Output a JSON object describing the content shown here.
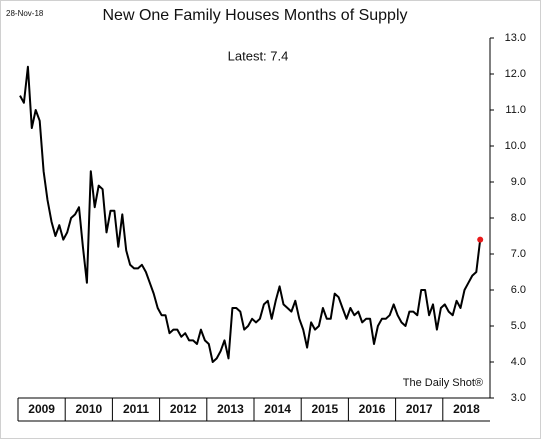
{
  "chart_data": {
    "type": "line",
    "title": "New One Family Houses Months of Supply",
    "date": "28-Nov-18",
    "annotation": "Latest:  7.4",
    "source": "The Daily Shot®",
    "categories": [
      null,
      null,
      null,
      null,
      null,
      null,
      "2009",
      null,
      null,
      null,
      null,
      null,
      null,
      null,
      null,
      null,
      null,
      null,
      "2010",
      null,
      null,
      null,
      null,
      null,
      null,
      null,
      null,
      null,
      null,
      null,
      "2011",
      null,
      null,
      null,
      null,
      null,
      null,
      null,
      null,
      null,
      null,
      null,
      "2012",
      null,
      null,
      null,
      null,
      null,
      null,
      null,
      null,
      null,
      null,
      null,
      "2013",
      null,
      null,
      null,
      null,
      null,
      null,
      null,
      null,
      null,
      null,
      null,
      "2014",
      null,
      null,
      null,
      null,
      null,
      null,
      null,
      null,
      null,
      null,
      null,
      "2015",
      null,
      null,
      null,
      null,
      null,
      null,
      null,
      null,
      null,
      null,
      null,
      "2016",
      null,
      null,
      null,
      null,
      null,
      null,
      null,
      null,
      null,
      null,
      null,
      "2017",
      null,
      null,
      null,
      null,
      null,
      null,
      null,
      null,
      null,
      null,
      null,
      "2018",
      null,
      null,
      null
    ],
    "series": [
      {
        "name": "Months of Supply",
        "color": "#000000",
        "highlight_color": "#e8191a",
        "values": [
          11.4,
          11.2,
          12.2,
          10.5,
          11.0,
          10.7,
          9.3,
          8.5,
          7.9,
          7.5,
          7.8,
          7.4,
          7.6,
          8.0,
          8.1,
          8.3,
          7.2,
          6.2,
          9.3,
          8.3,
          8.9,
          8.8,
          7.6,
          8.2,
          8.2,
          7.2,
          8.1,
          7.1,
          6.7,
          6.6,
          6.6,
          6.7,
          6.5,
          6.2,
          5.9,
          5.5,
          5.3,
          5.3,
          4.8,
          4.9,
          4.9,
          4.7,
          4.8,
          4.6,
          4.6,
          4.5,
          4.9,
          4.6,
          4.5,
          4.0,
          4.1,
          4.3,
          4.6,
          4.1,
          5.5,
          5.5,
          5.4,
          4.9,
          5.0,
          5.2,
          5.1,
          5.2,
          5.6,
          5.7,
          5.2,
          5.7,
          6.1,
          5.6,
          5.5,
          5.4,
          5.7,
          5.2,
          4.9,
          4.4,
          5.1,
          4.9,
          5.0,
          5.5,
          5.2,
          5.2,
          5.9,
          5.8,
          5.5,
          5.2,
          5.5,
          5.3,
          5.4,
          5.1,
          5.2,
          5.2,
          4.5,
          5.0,
          5.2,
          5.2,
          5.3,
          5.6,
          5.3,
          5.1,
          5.0,
          5.4,
          5.4,
          5.3,
          6.0,
          6.0,
          5.3,
          5.6,
          4.9,
          5.5,
          5.6,
          5.4,
          5.3,
          5.7,
          5.5,
          6.0,
          6.2,
          6.4,
          6.5,
          7.4
        ]
      }
    ],
    "ylim": [
      3,
      13
    ],
    "yticks": [
      {
        "value": 3,
        "label": "3.0"
      },
      {
        "value": 4,
        "label": "4.0"
      },
      {
        "value": 5,
        "label": "5.0"
      },
      {
        "value": 6,
        "label": "6.0"
      },
      {
        "value": 7,
        "label": "7.0"
      },
      {
        "value": 8,
        "label": "8.0"
      },
      {
        "value": 9,
        "label": "9.0"
      },
      {
        "value": 10,
        "label": "10.0"
      },
      {
        "value": 11,
        "label": "11.0"
      },
      {
        "value": 12,
        "label": "12.0"
      },
      {
        "value": 13,
        "label": "13.0"
      }
    ],
    "grid": false
  }
}
